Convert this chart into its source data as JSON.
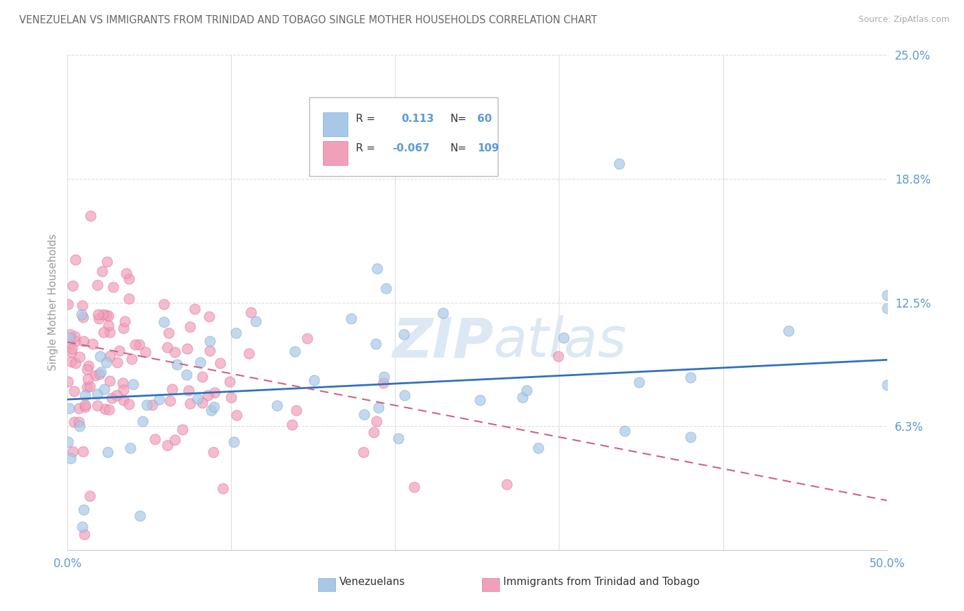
{
  "title": "VENEZUELAN VS IMMIGRANTS FROM TRINIDAD AND TOBAGO SINGLE MOTHER HOUSEHOLDS CORRELATION CHART",
  "source": "Source: ZipAtlas.com",
  "ylabel": "Single Mother Households",
  "xlim": [
    0.0,
    0.5
  ],
  "ylim": [
    0.0,
    0.25
  ],
  "yticks": [
    0.0,
    0.0625,
    0.125,
    0.1875,
    0.25
  ],
  "ytick_labels": [
    "",
    "6.3%",
    "12.5%",
    "18.8%",
    "25.0%"
  ],
  "xtick_vals": [
    0.0,
    0.1,
    0.2,
    0.3,
    0.4,
    0.5
  ],
  "xtick_labels": [
    "0.0%",
    "",
    "",
    "",
    "",
    "50.0%"
  ],
  "venezuelan_R": 0.113,
  "tt_R": -0.067,
  "venezuelan_N": 60,
  "tt_N": 109,
  "blue_color": "#a8c8e8",
  "pink_color": "#f0a0b8",
  "blue_edge_color": "#7aaace",
  "pink_edge_color": "#e070a0",
  "blue_line_color": "#3070c0",
  "pink_line_color": "#d06080",
  "title_color": "#666666",
  "source_color": "#aaaaaa",
  "axis_label_color": "#999999",
  "tick_color": "#5b9bd5",
  "watermark_color": "#dce8f4",
  "background_color": "#ffffff",
  "grid_color": "#dddddd",
  "blue_line_slope": 0.04,
  "blue_line_intercept": 0.076,
  "pink_line_slope": -0.16,
  "pink_line_intercept": 0.105
}
